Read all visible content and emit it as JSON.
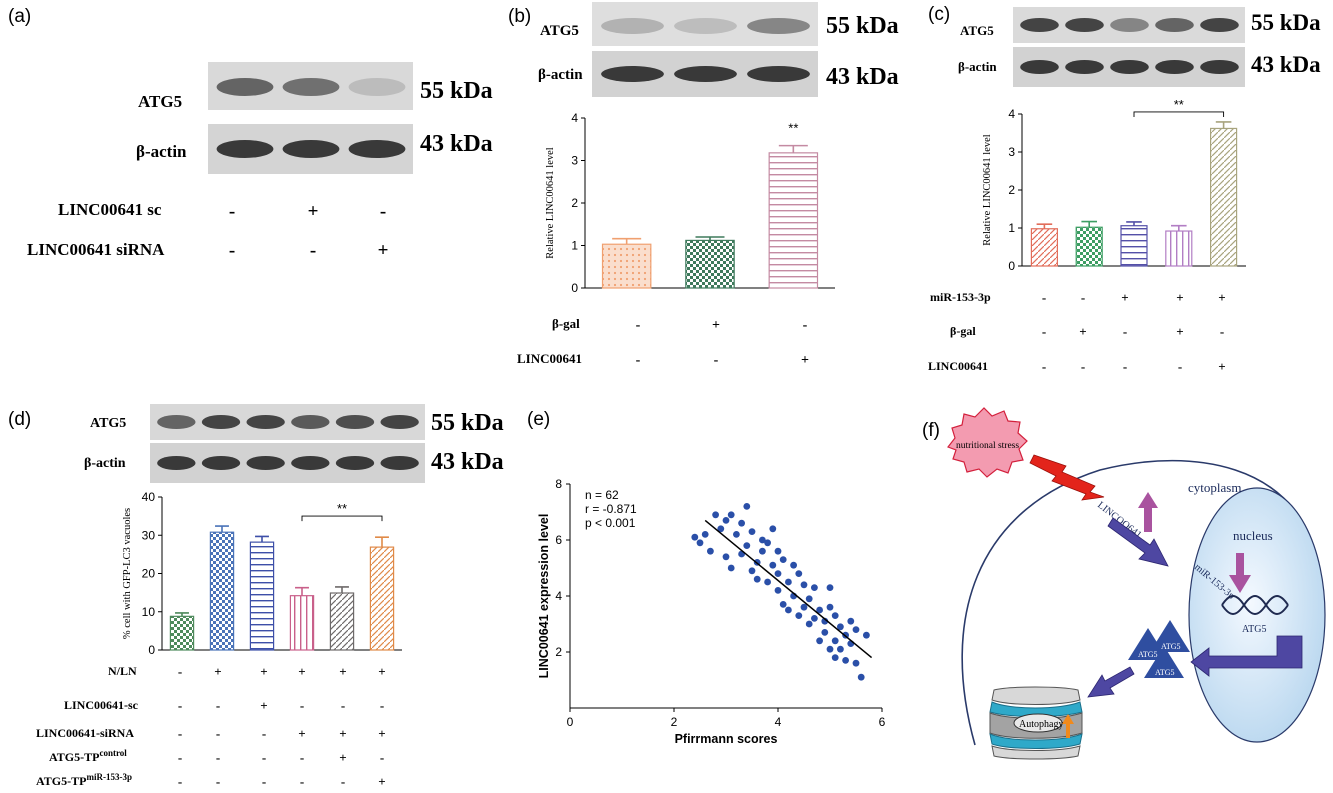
{
  "panels": {
    "a": {
      "letter": "(a)",
      "bands": [
        "ATG5",
        "β-actin"
      ],
      "kda": [
        "55 kDa",
        "43 kDa"
      ],
      "conditions": [
        {
          "label": "LINC00641 sc",
          "signs": [
            "-",
            "+",
            "-"
          ]
        },
        {
          "label": "LINC00641 siRNA",
          "signs": [
            "-",
            "-",
            "+"
          ]
        }
      ],
      "atg5_intensity": [
        0.7,
        0.65,
        0.3
      ],
      "actin_intensity": [
        0.9,
        0.9,
        0.9
      ]
    },
    "b": {
      "letter": "(b)",
      "bands": [
        "ATG5",
        "β-actin"
      ],
      "kda": [
        "55 kDa",
        "43 kDa"
      ],
      "conditions": [
        {
          "label": "β-gal",
          "signs": [
            "-",
            "+",
            "-"
          ]
        },
        {
          "label": "LINC00641",
          "signs": [
            "-",
            "-",
            "+"
          ]
        }
      ],
      "atg5_intensity": [
        0.35,
        0.3,
        0.55
      ],
      "actin_intensity": [
        0.9,
        0.9,
        0.9
      ]
    },
    "c": {
      "letter": "(c)",
      "bands": [
        "ATG5",
        "β-actin"
      ],
      "kda": [
        "55 kDa",
        "43 kDa"
      ],
      "conditions": [
        {
          "label": "miR-153-3p",
          "signs": [
            "-",
            "-",
            "+",
            "+",
            "+"
          ]
        },
        {
          "label": "β-gal",
          "signs": [
            "-",
            "+",
            "-",
            "+",
            "-"
          ]
        },
        {
          "label": "LINC00641",
          "signs": [
            "-",
            "-",
            "-",
            "-",
            "+"
          ]
        }
      ],
      "atg5_intensity": [
        0.85,
        0.85,
        0.55,
        0.7,
        0.85
      ],
      "actin_intensity": [
        0.9,
        0.9,
        0.9,
        0.9,
        0.9
      ]
    },
    "d": {
      "letter": "(d)",
      "bands": [
        "ATG5",
        "β-actin"
      ],
      "kda": [
        "55 kDa",
        "43 kDa"
      ],
      "conditions": [
        {
          "label": "N/LN",
          "signs": [
            "-",
            "+",
            "+",
            "+",
            "+",
            "+"
          ]
        },
        {
          "label": "LINC00641-sc",
          "signs": [
            "-",
            "-",
            "+",
            "-",
            "-",
            "-"
          ]
        },
        {
          "label": "LINC00641-siRNA",
          "signs": [
            "-",
            "-",
            "-",
            "+",
            "+",
            "+"
          ]
        },
        {
          "label": "ATG5-TP",
          "sup": "control",
          "signs": [
            "-",
            "-",
            "-",
            "-",
            "+",
            "-"
          ]
        },
        {
          "label": "ATG5-TP",
          "sup": "miR-153-3p",
          "signs": [
            "-",
            "-",
            "-",
            "-",
            "-",
            "+"
          ]
        }
      ],
      "atg5_intensity": [
        0.7,
        0.85,
        0.85,
        0.75,
        0.8,
        0.85
      ],
      "actin_intensity": [
        0.9,
        0.9,
        0.9,
        0.9,
        0.9,
        0.9
      ]
    },
    "e": {
      "letter": "(e)"
    },
    "f": {
      "letter": "(f)",
      "labels": {
        "stress": "nutritional stress",
        "cytoplasm": "cytoplasm",
        "nucleus": "nucleus",
        "linc": "LINCOO641",
        "mir": "miR-153-3p",
        "dna_atg5": "ATG5",
        "prot": "ATG5",
        "autophagy": "Autophagy"
      }
    }
  },
  "chart_data": [
    {
      "id": "b",
      "type": "bar",
      "ylabel": "Relative LINC00641 level",
      "ylim": [
        0,
        4
      ],
      "yticks": [
        0,
        1,
        2,
        3,
        4
      ],
      "values": [
        1.03,
        1.12,
        3.18
      ],
      "errors": [
        0.13,
        0.08,
        0.17
      ],
      "colors": [
        "#f0a070",
        "#3e7a5c",
        "#c48aa2"
      ],
      "annotation": "**"
    },
    {
      "id": "c",
      "type": "bar",
      "ylabel": "Relative LINC00641 level",
      "ylim": [
        0,
        4
      ],
      "yticks": [
        0,
        1,
        2,
        3,
        4
      ],
      "values": [
        0.98,
        1.02,
        1.06,
        0.92,
        3.62
      ],
      "errors": [
        0.12,
        0.15,
        0.1,
        0.14,
        0.17
      ],
      "colors": [
        "#e26d5a",
        "#3d9e63",
        "#5450a8",
        "#b27ec4",
        "#a8a47e"
      ],
      "annotation": "**"
    },
    {
      "id": "d",
      "type": "bar",
      "ylabel": "% cell with GFP-LC3 vacuoles",
      "ylim": [
        0,
        40
      ],
      "yticks": [
        0,
        10,
        20,
        30,
        40
      ],
      "values": [
        8.8,
        30.8,
        28.2,
        14.2,
        14.9,
        26.9
      ],
      "errors": [
        0.9,
        1.6,
        1.5,
        2.1,
        1.6,
        2.6
      ],
      "colors": [
        "#4e8a5c",
        "#4a73b8",
        "#3d4fa8",
        "#c9608a",
        "#6e6a6a",
        "#e08a48"
      ],
      "annotation": "**"
    },
    {
      "id": "e",
      "type": "scatter",
      "xlabel": "Pfirrmann scores",
      "ylabel": "LINC00641 expression level",
      "xlim": [
        0,
        6
      ],
      "ylim": [
        0,
        8
      ],
      "xticks": [
        0,
        2,
        4,
        6
      ],
      "yticks": [
        2,
        4,
        6,
        8
      ],
      "stats": [
        "n = 62",
        "r = -0.871",
        "p < 0.001"
      ],
      "trend": [
        [
          2.6,
          6.7
        ],
        [
          5.8,
          1.8
        ]
      ],
      "points": [
        [
          2.4,
          6.1
        ],
        [
          2.5,
          5.9
        ],
        [
          2.6,
          6.2
        ],
        [
          2.7,
          5.6
        ],
        [
          2.8,
          6.9
        ],
        [
          2.9,
          6.4
        ],
        [
          3.0,
          6.7
        ],
        [
          3.0,
          5.4
        ],
        [
          3.1,
          5.0
        ],
        [
          3.1,
          6.9
        ],
        [
          3.2,
          6.2
        ],
        [
          3.3,
          5.5
        ],
        [
          3.3,
          6.6
        ],
        [
          3.4,
          5.8
        ],
        [
          3.4,
          7.2
        ],
        [
          3.5,
          4.9
        ],
        [
          3.5,
          6.3
        ],
        [
          3.6,
          5.2
        ],
        [
          3.6,
          4.6
        ],
        [
          3.7,
          6.0
        ],
        [
          3.7,
          5.6
        ],
        [
          3.8,
          4.5
        ],
        [
          3.8,
          5.9
        ],
        [
          3.9,
          5.1
        ],
        [
          3.9,
          6.4
        ],
        [
          4.0,
          4.2
        ],
        [
          4.0,
          4.8
        ],
        [
          4.0,
          5.6
        ],
        [
          4.1,
          5.3
        ],
        [
          4.1,
          3.7
        ],
        [
          4.2,
          4.5
        ],
        [
          4.2,
          3.5
        ],
        [
          4.3,
          5.1
        ],
        [
          4.3,
          4.0
        ],
        [
          4.4,
          4.8
        ],
        [
          4.4,
          3.3
        ],
        [
          4.5,
          4.4
        ],
        [
          4.5,
          3.6
        ],
        [
          4.6,
          3.9
        ],
        [
          4.6,
          3.0
        ],
        [
          4.7,
          3.2
        ],
        [
          4.7,
          4.3
        ],
        [
          4.8,
          2.4
        ],
        [
          4.8,
          3.5
        ],
        [
          4.9,
          3.1
        ],
        [
          4.9,
          2.7
        ],
        [
          5.0,
          2.1
        ],
        [
          5.0,
          4.3
        ],
        [
          5.0,
          3.6
        ],
        [
          5.1,
          2.4
        ],
        [
          5.1,
          3.3
        ],
        [
          5.1,
          1.8
        ],
        [
          5.2,
          2.9
        ],
        [
          5.2,
          2.1
        ],
        [
          5.3,
          1.7
        ],
        [
          5.3,
          2.6
        ],
        [
          5.4,
          3.1
        ],
        [
          5.4,
          2.3
        ],
        [
          5.5,
          1.6
        ],
        [
          5.5,
          2.8
        ],
        [
          5.6,
          1.1
        ],
        [
          5.7,
          2.6
        ]
      ]
    }
  ]
}
